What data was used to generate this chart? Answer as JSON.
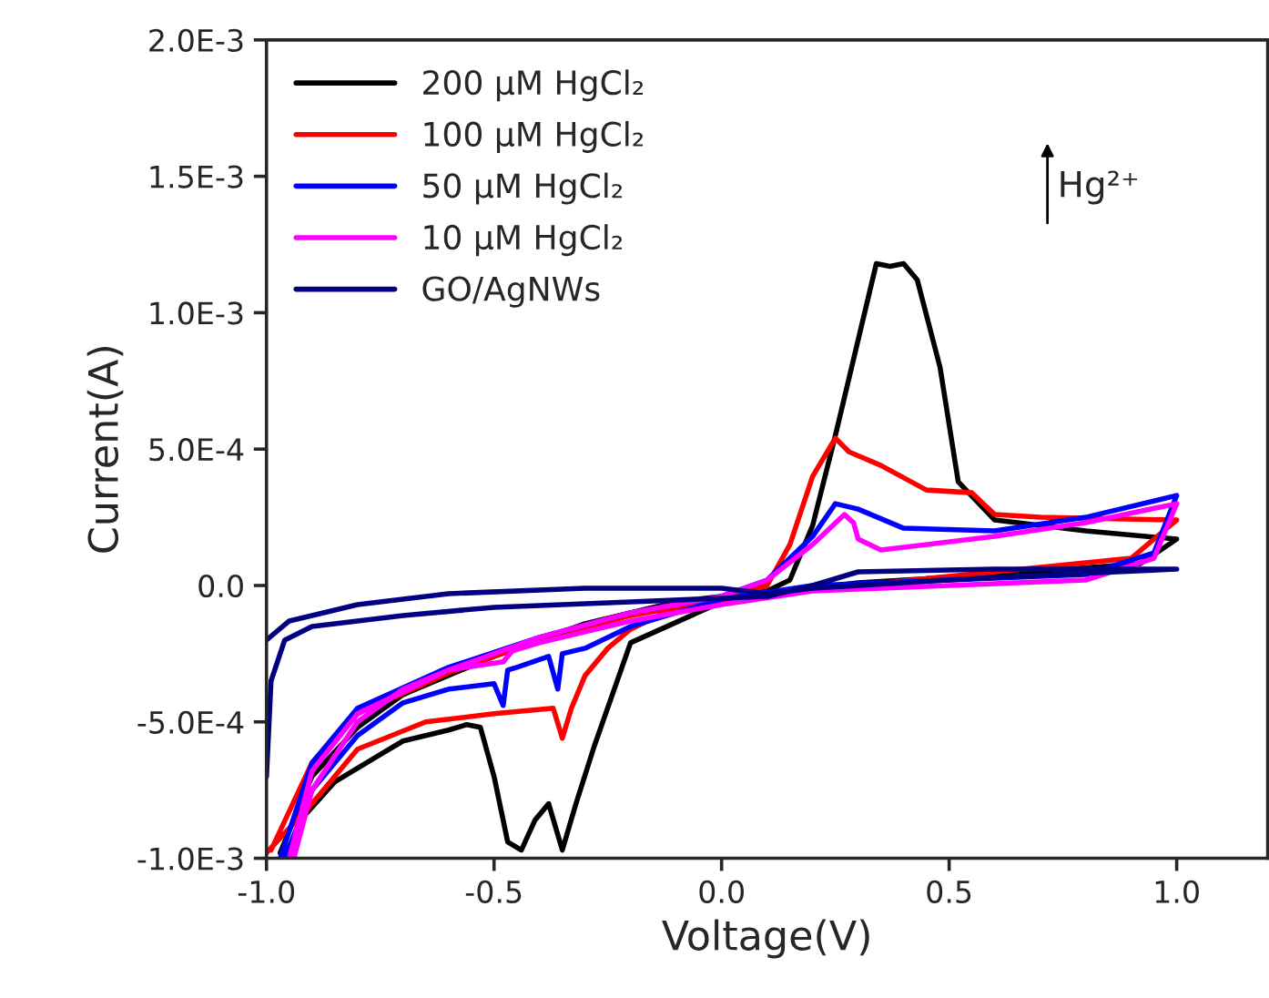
{
  "chart_data": {
    "type": "line",
    "xlabel": "Voltage(V)",
    "ylabel": "Current(A)",
    "xlim": [
      -1.0,
      1.2
    ],
    "xticks": [
      {
        "value": -1.0,
        "label": "-1.0"
      },
      {
        "value": -0.5,
        "label": "-0.5"
      },
      {
        "value": 0.0,
        "label": "0.0"
      },
      {
        "value": 0.5,
        "label": "0.5"
      },
      {
        "value": 1.0,
        "label": "1.0"
      }
    ],
    "ylim": [
      -0.001,
      0.002
    ],
    "yticks": [
      {
        "value": -0.001,
        "label": "-1.0E-3"
      },
      {
        "value": -0.0005,
        "label": "-5.0E-4"
      },
      {
        "value": 0.0,
        "label": "0.0"
      },
      {
        "value": 0.0005,
        "label": "5.0E-4"
      },
      {
        "value": 0.001,
        "label": "1.0E-3"
      },
      {
        "value": 0.0015,
        "label": "1.5E-3"
      },
      {
        "value": 0.002,
        "label": "2.0E-3"
      }
    ],
    "grid": false,
    "legend": "top left",
    "marker": "none",
    "line_style": "solid",
    "annotations": [
      "Hg²⁺"
    ],
    "series": [
      {
        "name": "200 μM HgCl₂",
        "color": "#000000",
        "x": [
          -0.97,
          -0.9,
          -0.8,
          -0.7,
          -0.5,
          -0.3,
          -0.1,
          0.1,
          0.15,
          0.2,
          0.25,
          0.3,
          0.34,
          0.37,
          0.4,
          0.43,
          0.48,
          0.52,
          0.6,
          0.8,
          1.0,
          0.92,
          0.6,
          0.3,
          0.1,
          0.0,
          -0.2,
          -0.28,
          -0.32,
          -0.35,
          -0.38,
          -0.41,
          -0.44,
          -0.47,
          -0.5,
          -0.53,
          -0.56,
          -0.6,
          -0.7,
          -0.75,
          -0.85,
          -0.92,
          -0.96
        ],
        "values": [
          -0.00098,
          -0.0007,
          -0.00052,
          -0.0004,
          -0.00026,
          -0.00014,
          -6e-05,
          -2e-05,
          2e-05,
          0.00022,
          0.00055,
          0.0009,
          0.00118,
          0.00117,
          0.00118,
          0.00112,
          0.0008,
          0.00038,
          0.00024,
          0.0002,
          0.00017,
          8e-05,
          4e-05,
          1e-05,
          -3e-05,
          -6e-05,
          -0.00021,
          -0.00059,
          -0.0008,
          -0.00097,
          -0.0008,
          -0.00086,
          -0.00097,
          -0.00094,
          -0.0007,
          -0.00052,
          -0.00051,
          -0.00053,
          -0.00057,
          -0.00062,
          -0.00072,
          -0.00085,
          -0.001
        ]
      },
      {
        "name": "100 μM HgCl₂",
        "color": "#ff0000",
        "x": [
          -0.99,
          -0.9,
          -0.8,
          -0.6,
          -0.4,
          -0.2,
          0.0,
          0.1,
          0.15,
          0.2,
          0.25,
          0.28,
          0.35,
          0.45,
          0.55,
          0.6,
          0.7,
          1.0,
          0.9,
          0.6,
          0.3,
          0.1,
          -0.1,
          -0.2,
          -0.25,
          -0.3,
          -0.33,
          -0.35,
          -0.37,
          -0.5,
          -0.65,
          -0.8,
          -0.9,
          -1.0
        ],
        "values": [
          -0.00097,
          -0.00065,
          -0.00047,
          -0.00032,
          -0.0002,
          -0.00011,
          -5e-05,
          0.0,
          0.00015,
          0.0004,
          0.00054,
          0.00049,
          0.00044,
          0.00035,
          0.00034,
          0.00026,
          0.00025,
          0.00024,
          0.0001,
          5e-05,
          0.0,
          -3e-05,
          -8e-05,
          -0.00016,
          -0.00023,
          -0.00033,
          -0.00045,
          -0.00056,
          -0.00045,
          -0.00047,
          -0.0005,
          -0.0006,
          -0.0008,
          -0.00098
        ]
      },
      {
        "name": "50 μM HgCl₂",
        "color": "#0000ff",
        "x": [
          -0.97,
          -0.9,
          -0.8,
          -0.6,
          -0.4,
          -0.2,
          0.0,
          0.1,
          0.2,
          0.25,
          0.3,
          0.4,
          0.6,
          0.8,
          1.0,
          0.95,
          0.8,
          0.5,
          0.2,
          0.0,
          -0.2,
          -0.3,
          -0.35,
          -0.36,
          -0.38,
          -0.45,
          -0.47,
          -0.48,
          -0.5,
          -0.6,
          -0.7,
          -0.8,
          -0.9,
          -0.96
        ],
        "values": [
          -0.001,
          -0.00065,
          -0.00045,
          -0.0003,
          -0.00019,
          -0.0001,
          -4e-05,
          2e-05,
          0.00018,
          0.0003,
          0.00028,
          0.00021,
          0.0002,
          0.00025,
          0.00033,
          0.00012,
          4e-05,
          2e-05,
          0.0,
          -5e-05,
          -0.00015,
          -0.00023,
          -0.00025,
          -0.00038,
          -0.00026,
          -0.0003,
          -0.00031,
          -0.00044,
          -0.00036,
          -0.00038,
          -0.00043,
          -0.00055,
          -0.00075,
          -0.001
        ]
      },
      {
        "name": "10 μM HgCl₂",
        "color": "#ff00ff",
        "x": [
          -0.95,
          -0.9,
          -0.8,
          -0.6,
          -0.4,
          -0.2,
          0.0,
          0.1,
          0.2,
          0.27,
          0.29,
          0.3,
          0.35,
          0.6,
          0.8,
          1.0,
          0.95,
          0.8,
          0.5,
          0.2,
          0.0,
          -0.2,
          -0.3,
          -0.4,
          -0.46,
          -0.48,
          -0.6,
          -0.7,
          -0.8,
          -0.9,
          -0.94
        ],
        "values": [
          -0.001,
          -0.00068,
          -0.00047,
          -0.00031,
          -0.00019,
          -0.0001,
          -4e-05,
          2e-05,
          0.00015,
          0.00026,
          0.00023,
          0.00017,
          0.00013,
          0.00018,
          0.00023,
          0.0003,
          0.0001,
          2e-05,
          0.0,
          -2e-05,
          -7e-05,
          -0.00013,
          -0.00017,
          -0.00021,
          -0.00024,
          -0.00028,
          -0.00031,
          -0.00038,
          -0.0005,
          -0.00075,
          -0.001
        ]
      },
      {
        "name": "GO/AgNWs",
        "color": "#000080",
        "x": [
          -1.0,
          -0.99,
          -0.96,
          -0.9,
          -0.7,
          -0.5,
          -0.2,
          0.1,
          0.2,
          0.3,
          0.6,
          1.0,
          0.6,
          0.2,
          0.1,
          0.0,
          -0.3,
          -0.6,
          -0.8,
          -0.95,
          -1.0
        ],
        "values": [
          -0.0007,
          -0.00035,
          -0.0002,
          -0.00015,
          -0.00011,
          -8e-05,
          -6e-05,
          -4e-05,
          0.0,
          5e-05,
          6e-05,
          6e-05,
          3e-05,
          -1e-05,
          -3e-05,
          -1e-05,
          -1e-05,
          -3e-05,
          -7e-05,
          -0.00013,
          -0.0002
        ]
      }
    ]
  }
}
